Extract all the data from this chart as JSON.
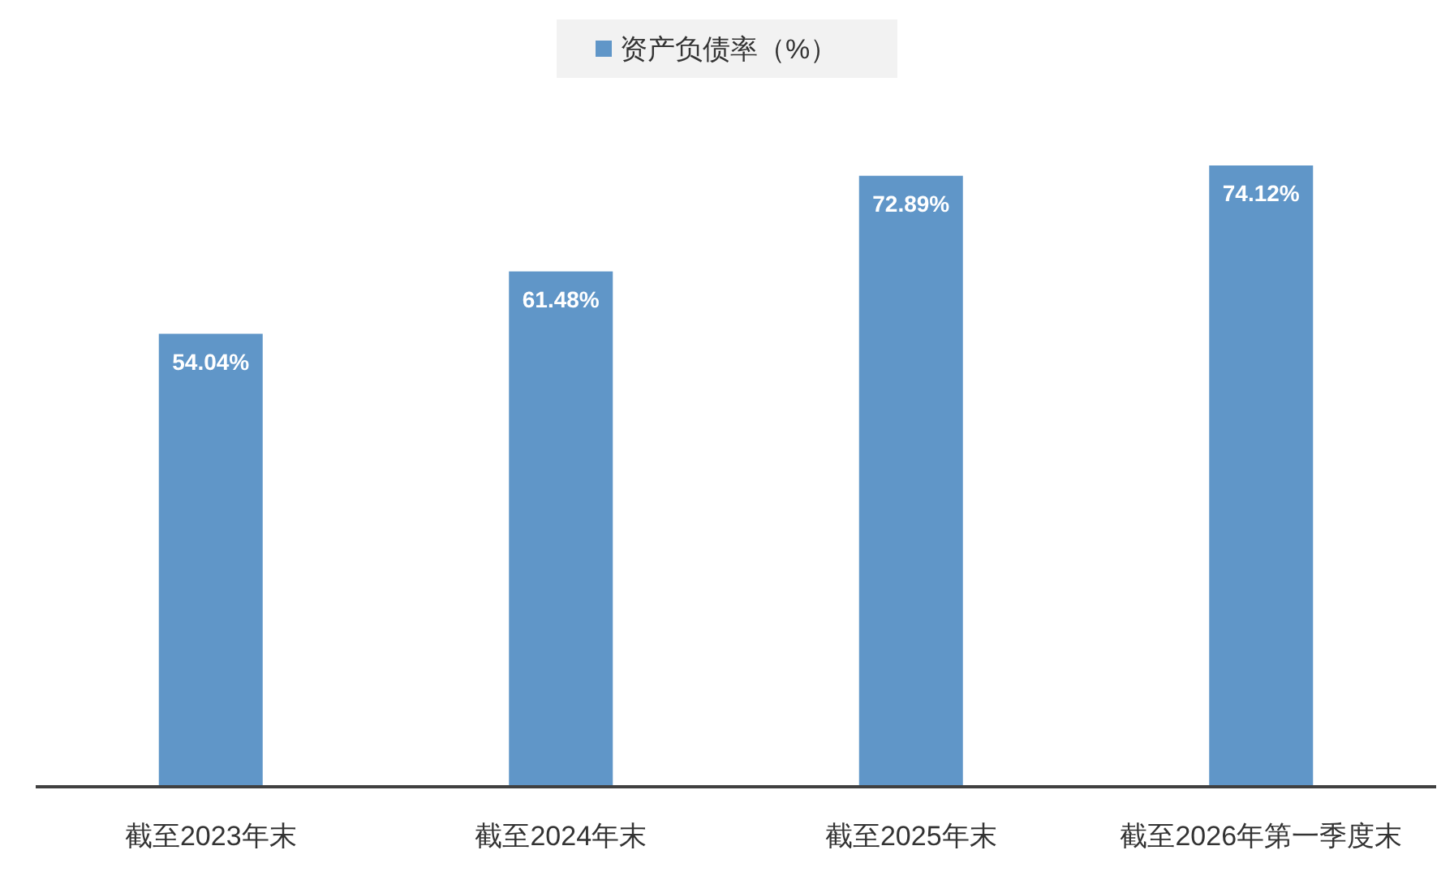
{
  "chart_data": {
    "type": "bar",
    "categories": [
      "截至2023年末",
      "截至2024年末",
      "截至2025年末",
      "截至2026年第一季度末"
    ],
    "series": [
      {
        "name": "资产负债率（%）",
        "color": "#6096c8",
        "values": [
          54.04,
          61.48,
          72.89,
          74.12
        ],
        "value_labels": [
          "54.04%",
          "61.48%",
          "72.89%",
          "74.12%"
        ]
      }
    ],
    "legend": "top"
  }
}
